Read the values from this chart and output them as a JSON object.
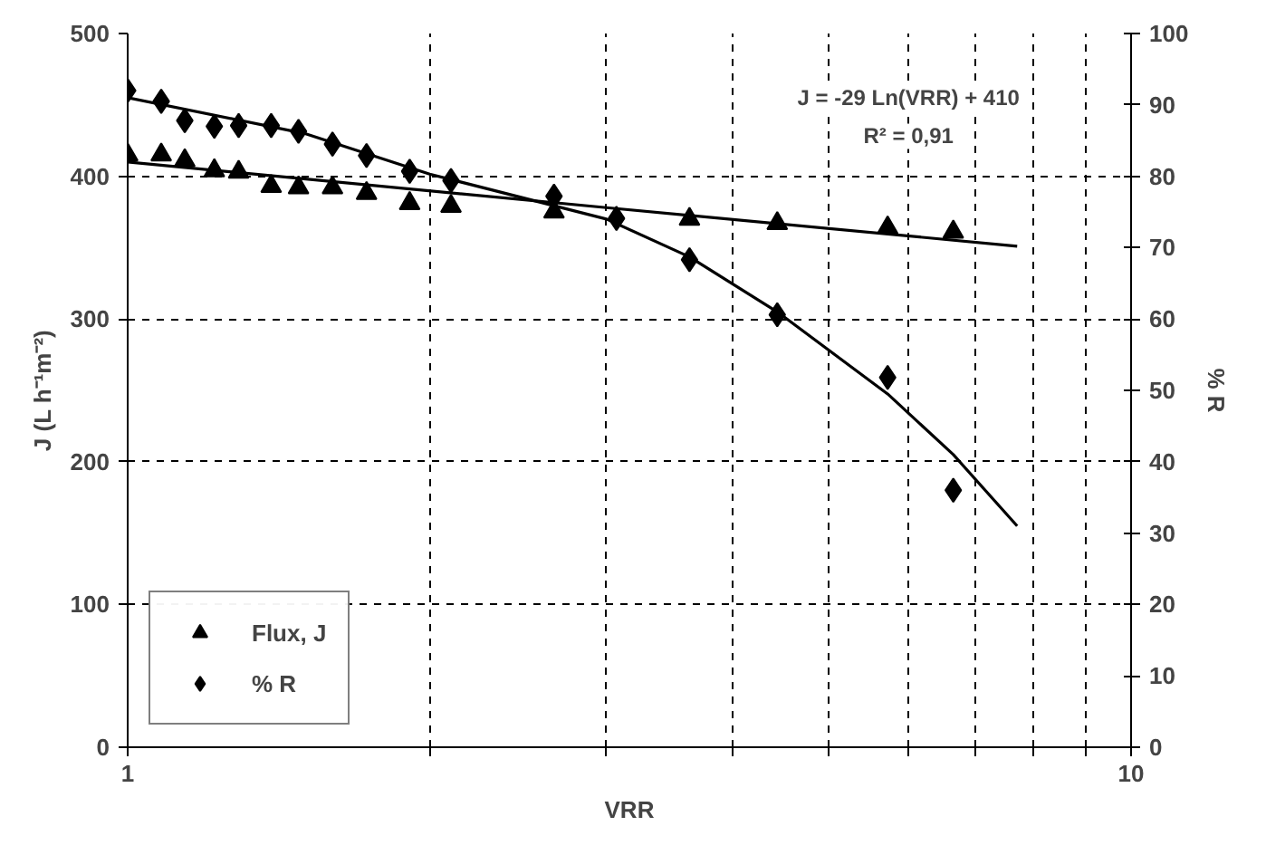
{
  "chart_data": {
    "type": "scatter",
    "xlabel": "VRR",
    "ylabel": "J (L h⁻¹m⁻²)",
    "y2label": "% R",
    "log": "x",
    "grid": true,
    "legend": "bottom left",
    "xlim": [
      1,
      10
    ],
    "xticks": [
      1,
      {
        "value": 2,
        "label": null
      },
      {
        "value": 3,
        "label": null
      },
      {
        "value": 4,
        "label": null
      },
      {
        "value": 5,
        "label": null
      },
      {
        "value": 6,
        "label": null
      },
      {
        "value": 7,
        "label": null
      },
      {
        "value": 8,
        "label": null
      },
      {
        "value": 9,
        "label": null
      },
      10
    ],
    "ylim": [
      0,
      500
    ],
    "yticks": [
      0,
      100,
      200,
      300,
      400,
      500
    ],
    "y2lim": [
      0,
      100
    ],
    "y2ticks": [
      0,
      10,
      20,
      30,
      40,
      50,
      60,
      70,
      80,
      90,
      100
    ],
    "series": [
      {
        "name": "Flux, J",
        "marker": "triangle",
        "color": "#000000",
        "x": [
          1.0,
          1.08,
          1.14,
          1.22,
          1.29,
          1.39,
          1.48,
          1.6,
          1.73,
          1.91,
          2.1,
          2.66,
          3.63,
          4.44,
          5.72,
          6.65
        ],
        "values": [
          415,
          415,
          411,
          404,
          403,
          393,
          392,
          392,
          388,
          381,
          379,
          375,
          370,
          367,
          364,
          361
        ]
      },
      {
        "name": "% R",
        "marker": "diamond",
        "axis": "y2",
        "color": "#000000",
        "x": [
          1.0,
          1.08,
          1.14,
          1.22,
          1.29,
          1.39,
          1.48,
          1.6,
          1.73,
          1.91,
          2.1,
          2.66,
          3.07,
          3.63,
          4.44,
          5.72,
          6.65
        ],
        "values": [
          92,
          90.5,
          87.8,
          87,
          87.1,
          87.1,
          86.3,
          84.5,
          82.9,
          80.7,
          79.4,
          77.2,
          74.1,
          68.3,
          60.6,
          51.8,
          36
        ]
      },
      {
        "type": "line",
        "color": "#000000",
        "x": [
          1,
          3,
          7.7
        ],
        "values": [
          410,
          378,
          351
        ]
      },
      {
        "type": "line",
        "axis": "y2",
        "color": "#000000",
        "x": [
          1,
          1.5,
          2,
          3,
          3.63,
          4.44,
          5.72,
          6.65,
          7.7
        ],
        "values": [
          91,
          86,
          80.3,
          74,
          68.7,
          61,
          49.5,
          41,
          31
        ]
      }
    ],
    "annotations": [
      "J = -29 Ln(VRR) + 410",
      "R² = 0,91"
    ]
  }
}
